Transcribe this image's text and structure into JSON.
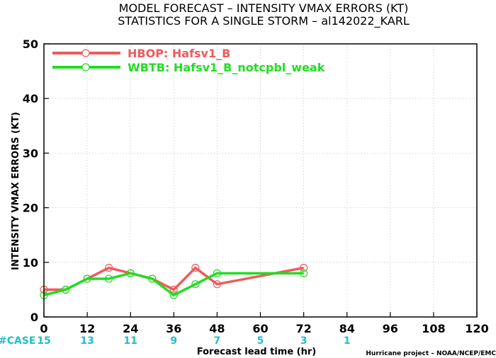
{
  "title_line1": "MODEL FORECAST – INTENSITY VMAX ERRORS (KT)",
  "title_line2": "STATISTICS FOR A SINGLE STORM – al142022_KARL",
  "credit": "Hurricane project – NOAA/NCEP/EMC",
  "case_label": "#CASE",
  "chart_data": {
    "type": "line",
    "xlabel": "Forecast lead time (hr)",
    "ylabel": "INTENSITY VMAX ERRORS (KT)",
    "xlim": [
      0,
      120
    ],
    "ylim": [
      0,
      50
    ],
    "xticks": [
      0,
      12,
      24,
      36,
      48,
      60,
      72,
      84,
      96,
      108,
      120
    ],
    "yticks": [
      0,
      10,
      20,
      30,
      40,
      50
    ],
    "grid": true,
    "legend_position": "top-left",
    "cases": [
      {
        "x": 0,
        "n": "15"
      },
      {
        "x": 12,
        "n": "13"
      },
      {
        "x": 24,
        "n": "11"
      },
      {
        "x": 36,
        "n": "9"
      },
      {
        "x": 48,
        "n": "7"
      },
      {
        "x": 60,
        "n": "5"
      },
      {
        "x": 72,
        "n": "3"
      },
      {
        "x": 84,
        "n": "1"
      }
    ],
    "series": [
      {
        "name": "HBOP: Hafsv1_B",
        "color": "#f05a5a",
        "points": [
          [
            0,
            5
          ],
          [
            6,
            5
          ],
          [
            12,
            7
          ],
          [
            18,
            9
          ],
          [
            24,
            8
          ],
          [
            30,
            7
          ],
          [
            36,
            5
          ],
          [
            42,
            9
          ],
          [
            48,
            6
          ],
          [
            72,
            9
          ]
        ]
      },
      {
        "name": "WBTB: Hafsv1_B_notcpbl_weak",
        "color": "#22dd22",
        "points": [
          [
            0,
            4
          ],
          [
            6,
            5
          ],
          [
            12,
            7
          ],
          [
            18,
            7
          ],
          [
            24,
            8
          ],
          [
            30,
            7
          ],
          [
            36,
            4
          ],
          [
            42,
            6
          ],
          [
            48,
            8
          ],
          [
            72,
            8
          ]
        ]
      }
    ]
  }
}
